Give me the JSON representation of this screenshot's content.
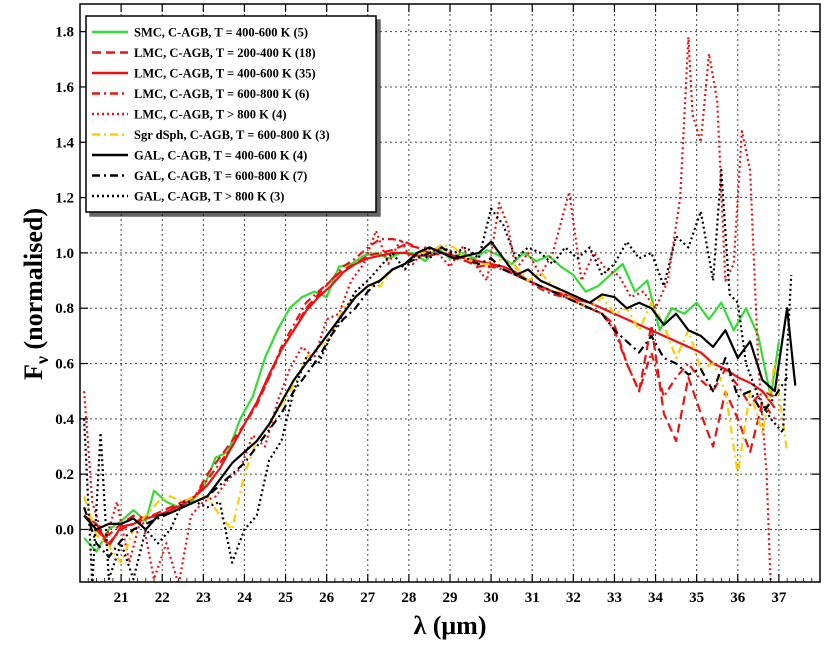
{
  "chart_data": {
    "type": "line",
    "title": "",
    "xlabel": "λ (μm)",
    "ylabel_main": "F",
    "ylabel_sub": "ν",
    "ylabel_rest": " (normalised)",
    "xlim": [
      20.0,
      38.0
    ],
    "ylim": [
      -0.19,
      1.9
    ],
    "x_ticks": [
      21,
      22,
      23,
      24,
      25,
      26,
      27,
      28,
      29,
      30,
      31,
      32,
      33,
      34,
      35,
      36,
      37
    ],
    "x_tick_labels": [
      "21",
      "22",
      "23",
      "24",
      "25",
      "26",
      "27",
      "28",
      "29",
      "30",
      "31",
      "32",
      "33",
      "34",
      "35",
      "36",
      "37"
    ],
    "y_ticks": [
      0.0,
      0.2,
      0.4,
      0.6,
      0.8,
      1.0,
      1.2,
      1.4,
      1.6,
      1.8
    ],
    "y_tick_labels": [
      "0.0",
      "0.2",
      "0.4",
      "0.6",
      "0.8",
      "1.0",
      "1.2",
      "1.4",
      "1.6",
      "1.8"
    ],
    "grid": true,
    "legend_position": "top-left",
    "series": [
      {
        "name": "SMC, C-AGB, T = 400-600 K (5)",
        "color": "#33dd33",
        "dash": "solid",
        "x": [
          20.1,
          20.4,
          20.7,
          21.0,
          21.3,
          21.6,
          21.8,
          22.1,
          22.4,
          22.7,
          23.0,
          23.3,
          23.6,
          23.9,
          24.2,
          24.5,
          24.8,
          25.1,
          25.4,
          25.7,
          26.0,
          26.3,
          26.6,
          26.9,
          27.2,
          27.5,
          27.8,
          28.1,
          28.4,
          28.7,
          29.0,
          29.3,
          29.6,
          29.9,
          30.2,
          30.5,
          30.8,
          31.1,
          31.4,
          31.7,
          32.0,
          32.3,
          32.6,
          32.9,
          33.2,
          33.5,
          33.8,
          34.1,
          34.4,
          34.7,
          35.0,
          35.3,
          35.6,
          35.9,
          36.2,
          36.5,
          36.8,
          37.0
        ],
        "y": [
          -0.03,
          -0.08,
          0.0,
          0.03,
          0.07,
          0.03,
          0.14,
          0.1,
          0.08,
          0.1,
          0.15,
          0.26,
          0.28,
          0.4,
          0.48,
          0.62,
          0.72,
          0.8,
          0.84,
          0.86,
          0.84,
          0.95,
          0.96,
          0.99,
          1.0,
          0.98,
          1.0,
          1.0,
          0.97,
          1.02,
          0.98,
          1.0,
          0.98,
          1.01,
          0.99,
          0.96,
          1.0,
          0.97,
          0.99,
          0.95,
          0.92,
          0.86,
          0.88,
          0.92,
          0.96,
          0.86,
          0.9,
          0.72,
          0.8,
          0.78,
          0.82,
          0.76,
          0.82,
          0.72,
          0.8,
          0.7,
          0.48,
          0.68
        ]
      },
      {
        "name": "LMC, C-AGB, T = 200-400 K (18)",
        "color": "#ee1111",
        "dash": "dashed",
        "x": [
          20.1,
          20.4,
          20.7,
          21.0,
          21.3,
          21.6,
          21.9,
          22.2,
          22.5,
          22.8,
          23.1,
          23.4,
          23.7,
          24.0,
          24.3,
          24.6,
          24.9,
          25.2,
          25.5,
          25.8,
          26.1,
          26.4,
          26.7,
          27.0,
          27.3,
          27.6,
          27.9,
          28.2,
          28.5,
          28.8,
          29.1,
          29.4,
          29.7,
          30.0,
          30.3,
          30.6,
          30.9,
          31.2,
          31.5,
          31.8,
          32.1,
          32.4,
          32.7,
          33.0,
          33.3,
          33.6,
          33.9,
          34.2,
          34.5,
          34.8,
          35.1,
          35.4,
          35.7,
          36.0,
          36.3,
          36.6,
          36.9
        ],
        "y": [
          0.05,
          0.0,
          -0.02,
          0.02,
          0.05,
          0.04,
          0.06,
          0.08,
          0.1,
          0.12,
          0.2,
          0.26,
          0.32,
          0.38,
          0.45,
          0.55,
          0.65,
          0.72,
          0.8,
          0.85,
          0.9,
          0.94,
          0.96,
          0.99,
          1.0,
          1.01,
          1.03,
          1.02,
          1.0,
          1.0,
          0.98,
          0.97,
          0.95,
          0.96,
          0.94,
          0.92,
          0.9,
          0.88,
          0.86,
          0.84,
          0.82,
          0.8,
          0.78,
          0.74,
          0.6,
          0.5,
          0.74,
          0.42,
          0.32,
          0.55,
          0.42,
          0.3,
          0.5,
          0.4,
          0.28,
          0.46,
          0.4
        ]
      },
      {
        "name": "LMC, C-AGB, T = 400-600 K (35)",
        "color": "#ee1111",
        "dash": "solid",
        "x": [
          20.1,
          20.4,
          20.7,
          21.0,
          21.3,
          21.6,
          21.9,
          22.2,
          22.5,
          22.8,
          23.1,
          23.4,
          23.7,
          24.0,
          24.3,
          24.6,
          24.9,
          25.2,
          25.5,
          25.8,
          26.1,
          26.4,
          26.7,
          27.0,
          27.3,
          27.6,
          27.9,
          28.2,
          28.5,
          28.8,
          29.1,
          29.4,
          29.7,
          30.0,
          30.3,
          30.6,
          30.9,
          31.2,
          31.5,
          31.8,
          32.1,
          32.4,
          32.7,
          33.0,
          33.3,
          33.6,
          33.9,
          34.2,
          34.5,
          34.8,
          35.1,
          35.4,
          35.7,
          36.0,
          36.3,
          36.6,
          36.9
        ],
        "y": [
          0.05,
          0.02,
          -0.06,
          0.01,
          0.02,
          0.04,
          0.05,
          0.07,
          0.09,
          0.12,
          0.16,
          0.22,
          0.3,
          0.38,
          0.46,
          0.56,
          0.65,
          0.72,
          0.79,
          0.84,
          0.88,
          0.93,
          0.96,
          0.98,
          0.99,
          1.0,
          1.0,
          0.99,
          0.99,
          1.0,
          0.99,
          0.98,
          0.97,
          0.96,
          0.95,
          0.93,
          0.9,
          0.88,
          0.86,
          0.85,
          0.83,
          0.82,
          0.8,
          0.78,
          0.76,
          0.74,
          0.72,
          0.7,
          0.68,
          0.66,
          0.64,
          0.6,
          0.58,
          0.55,
          0.53,
          0.5,
          0.44
        ]
      },
      {
        "name": "LMC, C-AGB, T = 600-800 K (6)",
        "color": "#ee1111",
        "dash": "dashdot",
        "x": [
          20.1,
          20.4,
          20.7,
          21.0,
          21.3,
          21.6,
          21.9,
          22.2,
          22.5,
          22.8,
          23.1,
          23.4,
          23.7,
          24.0,
          24.3,
          24.6,
          24.9,
          25.2,
          25.5,
          25.8,
          26.1,
          26.4,
          26.7,
          27.0,
          27.3,
          27.6,
          27.9,
          28.2,
          28.5,
          28.8,
          29.1,
          29.4,
          29.7,
          30.0,
          30.3,
          30.6,
          30.9,
          31.2,
          31.5,
          31.8,
          32.1,
          32.4,
          32.7,
          33.0,
          33.3,
          33.6,
          33.9,
          34.2,
          34.5,
          34.8,
          35.1,
          35.4,
          35.7,
          36.0,
          36.3,
          36.6,
          36.9
        ],
        "y": [
          0.05,
          0.0,
          -0.05,
          0.0,
          0.02,
          0.05,
          0.05,
          0.07,
          0.1,
          0.12,
          0.18,
          0.24,
          0.3,
          0.38,
          0.46,
          0.55,
          0.66,
          0.74,
          0.82,
          0.86,
          0.9,
          0.95,
          0.98,
          1.02,
          1.05,
          1.05,
          1.04,
          1.02,
          1.0,
          1.02,
          0.99,
          0.97,
          0.96,
          0.95,
          0.94,
          0.92,
          0.9,
          0.87,
          0.85,
          0.84,
          0.82,
          0.8,
          0.78,
          0.72,
          0.6,
          0.5,
          0.64,
          0.48,
          0.55,
          0.6,
          0.54,
          0.5,
          0.58,
          0.52,
          0.45,
          0.5,
          0.48
        ]
      },
      {
        "name": "LMC, C-AGB, T > 800 K (4)",
        "color": "#ee1111",
        "dash": "dotted",
        "x": [
          20.1,
          20.3,
          20.6,
          20.9,
          21.2,
          21.5,
          21.8,
          22.1,
          22.4,
          22.7,
          23.0,
          23.3,
          23.6,
          23.9,
          24.2,
          24.5,
          24.8,
          25.1,
          25.4,
          25.7,
          26.0,
          26.3,
          26.6,
          26.9,
          27.2,
          27.5,
          27.8,
          28.1,
          28.4,
          28.7,
          29.0,
          29.3,
          29.6,
          29.9,
          30.2,
          30.4,
          30.6,
          30.9,
          31.2,
          31.5,
          31.9,
          32.2,
          32.5,
          32.8,
          33.1,
          33.4,
          33.7,
          34.0,
          34.3,
          34.6,
          34.8,
          34.9,
          35.1,
          35.3,
          35.5,
          35.7,
          35.9,
          36.1,
          36.3,
          36.5,
          36.7,
          36.8
        ],
        "y": [
          0.5,
          0.1,
          -0.05,
          0.1,
          -0.12,
          0.05,
          -0.18,
          -0.05,
          -0.2,
          0.05,
          0.1,
          0.12,
          0.18,
          0.22,
          0.34,
          0.3,
          0.46,
          0.58,
          0.66,
          0.62,
          0.76,
          0.78,
          0.9,
          0.96,
          1.08,
          0.96,
          1.05,
          0.96,
          1.02,
          1.0,
          0.95,
          1.02,
          0.96,
          0.9,
          1.18,
          1.1,
          0.94,
          1.0,
          0.92,
          1.0,
          1.22,
          0.9,
          1.0,
          0.94,
          0.92,
          0.84,
          0.86,
          0.8,
          0.9,
          1.2,
          1.78,
          1.5,
          1.4,
          1.72,
          1.55,
          0.9,
          0.96,
          1.44,
          1.3,
          0.6,
          0.2,
          -0.2
        ]
      },
      {
        "name": "Sgr dSph, C-AGB, T = 600-800 K (3)",
        "color": "#ffcc00",
        "dash": "dashdot",
        "x": [
          20.1,
          20.4,
          20.7,
          21.0,
          21.3,
          21.6,
          21.9,
          22.2,
          22.5,
          22.8,
          23.1,
          23.4,
          23.7,
          24.0,
          24.3,
          24.6,
          24.9,
          25.2,
          25.5,
          25.8,
          26.1,
          26.4,
          26.7,
          27.0,
          27.3,
          27.6,
          27.9,
          28.2,
          28.5,
          28.8,
          29.1,
          29.4,
          29.7,
          30.0,
          30.3,
          30.6,
          30.9,
          31.2,
          31.5,
          31.8,
          32.1,
          32.4,
          32.7,
          33.0,
          33.3,
          33.6,
          33.9,
          34.2,
          34.5,
          34.8,
          35.1,
          35.4,
          35.7,
          36.0,
          36.3,
          36.6,
          36.9,
          37.2
        ],
        "y": [
          0.12,
          -0.02,
          -0.06,
          -0.12,
          0.0,
          0.05,
          0.1,
          0.12,
          0.1,
          0.12,
          0.12,
          0.05,
          0.0,
          0.2,
          0.32,
          0.38,
          0.45,
          0.52,
          0.62,
          0.66,
          0.7,
          0.8,
          0.84,
          0.88,
          0.88,
          0.94,
          0.96,
          1.0,
          1.0,
          1.03,
          1.02,
          0.98,
          0.96,
          0.96,
          0.98,
          0.95,
          0.9,
          0.93,
          0.88,
          0.85,
          0.82,
          0.8,
          0.84,
          0.78,
          0.8,
          0.72,
          0.82,
          0.74,
          0.62,
          0.72,
          0.58,
          0.6,
          0.5,
          0.2,
          0.5,
          0.35,
          0.6,
          0.28
        ]
      },
      {
        "name": "GAL, C-AGB, T = 400-600 K (4)",
        "color": "#000000",
        "dash": "solid",
        "x": [
          20.1,
          20.4,
          20.7,
          21.0,
          21.3,
          21.6,
          21.9,
          22.2,
          22.5,
          22.8,
          23.1,
          23.4,
          23.7,
          24.0,
          24.3,
          24.6,
          24.9,
          25.2,
          25.5,
          25.8,
          26.1,
          26.4,
          26.7,
          27.0,
          27.3,
          27.6,
          27.9,
          28.2,
          28.5,
          28.8,
          29.1,
          29.4,
          29.7,
          30.0,
          30.3,
          30.6,
          30.9,
          31.2,
          31.5,
          31.8,
          32.1,
          32.4,
          32.7,
          33.0,
          33.3,
          33.6,
          33.9,
          34.2,
          34.5,
          34.8,
          35.1,
          35.4,
          35.7,
          36.0,
          36.3,
          36.6,
          36.9,
          37.2,
          37.4
        ],
        "y": [
          0.05,
          0.0,
          0.02,
          0.02,
          0.04,
          0.0,
          0.05,
          0.06,
          0.08,
          0.1,
          0.12,
          0.18,
          0.24,
          0.28,
          0.32,
          0.38,
          0.46,
          0.54,
          0.6,
          0.66,
          0.72,
          0.78,
          0.84,
          0.88,
          0.9,
          0.94,
          0.96,
          1.0,
          1.02,
          1.0,
          0.98,
          0.99,
          1.0,
          1.04,
          0.98,
          0.92,
          0.94,
          0.9,
          0.88,
          0.86,
          0.84,
          0.82,
          0.85,
          0.84,
          0.8,
          0.82,
          0.8,
          0.74,
          0.78,
          0.72,
          0.7,
          0.66,
          0.72,
          0.62,
          0.68,
          0.54,
          0.5,
          0.8,
          0.52
        ]
      },
      {
        "name": "GAL, C-AGB, T = 600-800 K (7)",
        "color": "#000000",
        "dash": "dashdot",
        "x": [
          20.1,
          20.4,
          20.7,
          21.0,
          21.3,
          21.6,
          21.9,
          22.2,
          22.5,
          22.8,
          23.1,
          23.4,
          23.7,
          24.0,
          24.3,
          24.6,
          24.9,
          25.2,
          25.5,
          25.8,
          26.1,
          26.4,
          26.7,
          27.0,
          27.3,
          27.6,
          27.9,
          28.2,
          28.5,
          28.8,
          29.1,
          29.4,
          29.7,
          30.0,
          30.3,
          30.6,
          30.9,
          31.2,
          31.5,
          31.8,
          32.1,
          32.4,
          32.7,
          33.0,
          33.3,
          33.6,
          33.9,
          34.2,
          34.5,
          34.8,
          35.1,
          35.4,
          35.7,
          36.0,
          36.3,
          36.6,
          36.9,
          37.2
        ],
        "y": [
          0.08,
          -0.05,
          -0.1,
          -0.04,
          0.0,
          0.02,
          0.04,
          0.06,
          0.08,
          0.1,
          0.12,
          0.16,
          0.2,
          0.24,
          0.3,
          0.36,
          0.42,
          0.5,
          0.56,
          0.62,
          0.7,
          0.76,
          0.8,
          0.86,
          0.9,
          0.94,
          0.96,
          0.98,
          1.0,
          1.02,
          0.99,
          0.98,
          0.96,
          0.98,
          0.94,
          0.92,
          0.9,
          0.88,
          0.86,
          0.84,
          0.82,
          0.8,
          0.78,
          0.72,
          0.68,
          0.64,
          0.7,
          0.62,
          0.6,
          0.56,
          0.58,
          0.5,
          0.62,
          0.48,
          0.5,
          0.42,
          0.48,
          0.55
        ]
      },
      {
        "name": "GAL, C-AGB, T > 800 K (3)",
        "color": "#000000",
        "dash": "dotted",
        "x": [
          20.1,
          20.3,
          20.5,
          20.7,
          21.0,
          21.3,
          21.6,
          21.9,
          22.2,
          22.5,
          22.8,
          23.1,
          23.4,
          23.7,
          24.0,
          24.3,
          24.6,
          24.9,
          25.2,
          25.5,
          25.8,
          26.1,
          26.4,
          26.7,
          27.0,
          27.3,
          27.6,
          27.9,
          28.2,
          28.5,
          28.8,
          29.1,
          29.4,
          29.7,
          30.0,
          30.3,
          30.6,
          30.9,
          31.2,
          31.5,
          31.8,
          32.1,
          32.4,
          32.7,
          33.0,
          33.3,
          33.6,
          33.9,
          34.2,
          34.5,
          34.8,
          35.1,
          35.4,
          35.6,
          35.8,
          36.0,
          36.2,
          36.5,
          36.8,
          37.1,
          37.3
        ],
        "y": [
          0.4,
          -0.2,
          0.35,
          -0.18,
          -0.05,
          -0.18,
          0.0,
          -0.05,
          0.0,
          0.1,
          0.1,
          0.08,
          0.1,
          -0.12,
          0.0,
          0.05,
          0.25,
          0.32,
          0.5,
          0.62,
          0.6,
          0.7,
          0.78,
          0.86,
          0.9,
          0.95,
          1.0,
          0.94,
          1.0,
          0.98,
          1.02,
          1.0,
          1.02,
          0.98,
          1.16,
          1.1,
          0.98,
          1.02,
          1.0,
          0.96,
          1.02,
          0.98,
          1.02,
          0.92,
          0.96,
          1.04,
          0.98,
          1.0,
          0.88,
          1.06,
          1.02,
          1.15,
          0.9,
          1.3,
          0.85,
          0.82,
          0.6,
          0.48,
          0.4,
          0.35,
          0.92
        ]
      }
    ]
  }
}
